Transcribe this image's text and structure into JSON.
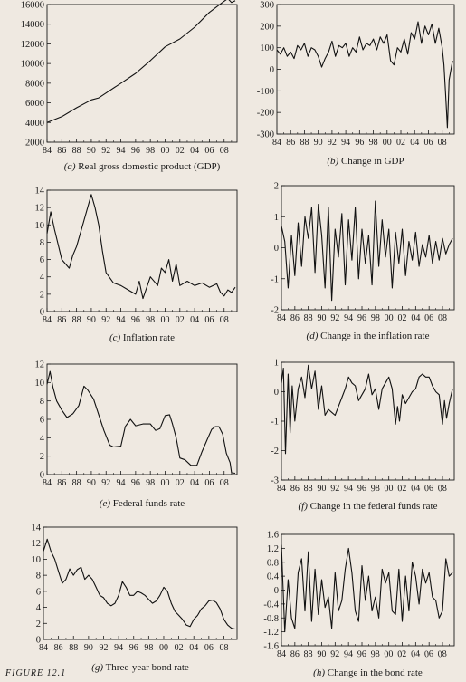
{
  "footer_text": "FIGURE 12.1",
  "chart_data": [
    {
      "id": "a",
      "type": "line",
      "panel_label": "(a)",
      "caption": "Real gross domestic product (GDP)",
      "xlim": [
        1984,
        2009.75
      ],
      "xticks": [
        "84",
        "86",
        "88",
        "90",
        "92",
        "94",
        "96",
        "98",
        "00",
        "02",
        "04",
        "06",
        "08"
      ],
      "ylim": [
        2000,
        16000
      ],
      "yticks": [
        2000,
        4000,
        6000,
        8000,
        10000,
        12000,
        14000,
        16000
      ],
      "grid": false,
      "x": [
        1984,
        1986,
        1988,
        1990,
        1991,
        1992,
        1994,
        1996,
        1998,
        2000,
        2002,
        2004,
        2006,
        2007.75,
        2008.5,
        2009,
        2009.5
      ],
      "y": [
        4000,
        4600,
        5500,
        6300,
        6500,
        7000,
        8000,
        9000,
        10300,
        11700,
        12500,
        13700,
        15200,
        16200,
        16600,
        16200,
        16400
      ]
    },
    {
      "id": "b",
      "type": "line",
      "panel_label": "(b)",
      "caption": "Change in GDP",
      "xlim": [
        1984,
        2009.75
      ],
      "xticks": [
        "84",
        "86",
        "88",
        "90",
        "92",
        "94",
        "96",
        "98",
        "00",
        "02",
        "04",
        "06",
        "08"
      ],
      "ylim": [
        -300,
        300
      ],
      "yticks": [
        -300,
        -200,
        -100,
        0,
        100,
        200,
        300
      ],
      "grid": false,
      "x": [
        1984,
        1984.5,
        1985,
        1985.5,
        1986,
        1986.5,
        1987,
        1987.5,
        1988,
        1988.5,
        1989,
        1989.5,
        1990,
        1990.5,
        1991,
        1991.5,
        1992,
        1992.5,
        1993,
        1993.5,
        1994,
        1994.5,
        1995,
        1995.5,
        1996,
        1996.5,
        1997,
        1997.5,
        1998,
        1998.5,
        1999,
        1999.5,
        2000,
        2000.5,
        2001,
        2001.5,
        2002,
        2002.5,
        2003,
        2003.5,
        2004,
        2004.5,
        2005,
        2005.5,
        2006,
        2006.5,
        2007,
        2007.5,
        2008,
        2008.25,
        2008.5,
        2008.75,
        2009,
        2009.5
      ],
      "y": [
        90,
        70,
        100,
        60,
        80,
        50,
        110,
        90,
        120,
        60,
        100,
        90,
        60,
        10,
        50,
        80,
        130,
        60,
        110,
        100,
        120,
        60,
        100,
        80,
        150,
        90,
        120,
        110,
        140,
        90,
        150,
        120,
        160,
        40,
        20,
        100,
        80,
        140,
        70,
        170,
        140,
        220,
        120,
        200,
        160,
        210,
        120,
        190,
        100,
        20,
        -120,
        -270,
        -50,
        40
      ]
    },
    {
      "id": "c",
      "type": "line",
      "panel_label": "(c)",
      "caption": "Inflation rate",
      "xlim": [
        1984,
        2009.75
      ],
      "xticks": [
        "84",
        "86",
        "88",
        "90",
        "92",
        "94",
        "96",
        "98",
        "00",
        "02",
        "04",
        "06",
        "08"
      ],
      "ylim": [
        0,
        14
      ],
      "yticks": [
        0,
        2,
        4,
        6,
        8,
        10,
        12,
        14
      ],
      "grid": false,
      "x": [
        1984,
        1984.5,
        1985,
        1986,
        1987,
        1987.5,
        1988,
        1989,
        1990,
        1990.5,
        1991,
        1991.5,
        1992,
        1993,
        1994,
        1995,
        1996,
        1996.5,
        1997,
        1998,
        1999,
        1999.5,
        2000,
        2000.5,
        2001,
        2001.5,
        2002,
        2003,
        2004,
        2005,
        2006,
        2007,
        2007.5,
        2008,
        2008.5,
        2009,
        2009.5
      ],
      "y": [
        9,
        11.5,
        9.5,
        6,
        5,
        6.5,
        7.5,
        10.5,
        13.5,
        12,
        10,
        7,
        4.5,
        3.3,
        3,
        2.5,
        2,
        3.5,
        1.5,
        4,
        3,
        5,
        4.5,
        6,
        3.5,
        5.5,
        3,
        3.5,
        3,
        3.3,
        2.8,
        3.2,
        2.2,
        1.8,
        2.5,
        2.2,
        2.8
      ]
    },
    {
      "id": "d",
      "type": "line",
      "panel_label": "(d)",
      "caption": "Change in the inflation rate",
      "xlim": [
        1984,
        2009.75
      ],
      "xticks": [
        "84",
        "86",
        "88",
        "90",
        "92",
        "94",
        "96",
        "98",
        "00",
        "02",
        "04",
        "06",
        "08"
      ],
      "ylim": [
        -2,
        2
      ],
      "yticks": [
        -2,
        -1,
        0,
        1,
        2
      ],
      "grid": false,
      "x": [
        1984,
        1984.5,
        1985,
        1985.5,
        1986,
        1986.5,
        1987,
        1987.5,
        1988,
        1988.5,
        1989,
        1989.5,
        1990,
        1990.5,
        1991,
        1991.5,
        1992,
        1992.5,
        1993,
        1993.5,
        1994,
        1994.5,
        1995,
        1995.5,
        1996,
        1996.5,
        1997,
        1997.5,
        1998,
        1998.5,
        1999,
        1999.5,
        2000,
        2000.5,
        2001,
        2001.5,
        2002,
        2002.5,
        2003,
        2003.5,
        2004,
        2004.5,
        2005,
        2005.5,
        2006,
        2006.5,
        2007,
        2007.5,
        2008,
        2008.5,
        2009,
        2009.5
      ],
      "y": [
        0.7,
        0.2,
        -1.3,
        0.4,
        -0.9,
        0.8,
        -0.6,
        1.0,
        0.3,
        1.3,
        -0.8,
        1.4,
        0.4,
        -1.3,
        1.3,
        -1.7,
        0.6,
        -0.3,
        1.1,
        -1.2,
        0.9,
        -0.4,
        1.3,
        -1.0,
        0.6,
        -0.5,
        0.4,
        -1.2,
        1.5,
        -0.6,
        0.9,
        -0.3,
        0.6,
        -1.3,
        0.5,
        -0.5,
        0.6,
        -0.9,
        0.2,
        -0.4,
        0.5,
        -0.6,
        0.1,
        -0.3,
        0.4,
        -0.5,
        0.2,
        -0.4,
        0.3,
        -0.2,
        0.1,
        0.3
      ]
    },
    {
      "id": "e",
      "type": "line",
      "panel_label": "(e)",
      "caption": "Federal funds rate",
      "xlim": [
        1984,
        2009.75
      ],
      "xticks": [
        "84",
        "86",
        "88",
        "90",
        "92",
        "94",
        "96",
        "98",
        "00",
        "02",
        "04",
        "06",
        "08"
      ],
      "ylim": [
        0,
        12
      ],
      "yticks": [
        0,
        2,
        4,
        6,
        8,
        10,
        12
      ],
      "grid": false,
      "x": [
        1984,
        1984.4,
        1984.8,
        1985.3,
        1986,
        1986.7,
        1987.5,
        1988.3,
        1989,
        1989.5,
        1990.3,
        1991,
        1991.7,
        1992.5,
        1993,
        1994,
        1994.6,
        1995.3,
        1996,
        1997,
        1998,
        1998.7,
        1999.3,
        2000,
        2000.6,
        2001,
        2001.5,
        2002,
        2002.7,
        2003.5,
        2004.3,
        2005,
        2005.7,
        2006.3,
        2006.8,
        2007.3,
        2007.8,
        2008.3,
        2008.8,
        2009,
        2009.5
      ],
      "y": [
        9.8,
        11.2,
        9.5,
        8,
        7,
        6.2,
        6.6,
        7.5,
        9.6,
        9.2,
        8.2,
        6.5,
        4.8,
        3.2,
        3,
        3.1,
        5.2,
        6,
        5.3,
        5.5,
        5.5,
        4.8,
        5,
        6.4,
        6.5,
        5.5,
        4,
        1.8,
        1.6,
        1,
        1,
        2.5,
        3.8,
        4.9,
        5.2,
        5.2,
        4.4,
        2.3,
        1.3,
        0.2,
        0.15
      ]
    },
    {
      "id": "f",
      "type": "line",
      "panel_label": "(f)",
      "caption": "Change in the federal funds rate",
      "xlim": [
        1984,
        2009.75
      ],
      "xticks": [
        "84",
        "86",
        "88",
        "90",
        "92",
        "94",
        "96",
        "98",
        "00",
        "02",
        "04",
        "06",
        "08"
      ],
      "ylim": [
        -3,
        1
      ],
      "yticks": [
        -3,
        -2,
        -1,
        0,
        1
      ],
      "grid": false,
      "x": [
        1984,
        1984.3,
        1984.6,
        1985,
        1985.3,
        1985.6,
        1986,
        1986.5,
        1987,
        1987.5,
        1988,
        1988.5,
        1989,
        1989.5,
        1990,
        1990.5,
        1991,
        1991.5,
        1992,
        1992.5,
        1993,
        1993.5,
        1994,
        1994.5,
        1995,
        1995.5,
        1996,
        1996.5,
        1997,
        1997.5,
        1998,
        1998.5,
        1999,
        1999.5,
        2000,
        2000.5,
        2001,
        2001.3,
        2001.6,
        2002,
        2002.5,
        2003,
        2003.5,
        2004,
        2004.5,
        2005,
        2005.5,
        2006,
        2006.5,
        2007,
        2007.5,
        2007.8,
        2008,
        2008.3,
        2008.6,
        2009,
        2009.5
      ],
      "y": [
        0.3,
        0.8,
        -2.1,
        0.6,
        -1.4,
        0.2,
        -1.0,
        0.1,
        0.5,
        -0.2,
        0.9,
        0.1,
        0.7,
        -0.6,
        0.2,
        -0.8,
        -0.6,
        -0.7,
        -0.8,
        -0.5,
        -0.2,
        0.1,
        0.5,
        0.3,
        0.2,
        -0.3,
        -0.1,
        0.1,
        0.6,
        -0.1,
        0.1,
        -0.6,
        0.1,
        0.3,
        0.5,
        0.1,
        -1.1,
        -0.5,
        -1.0,
        -0.1,
        -0.4,
        -0.2,
        0,
        0.1,
        0.5,
        0.6,
        0.5,
        0.5,
        0.2,
        0,
        -0.1,
        -0.7,
        -1.1,
        -0.3,
        -0.9,
        -0.4,
        0.1
      ]
    },
    {
      "id": "g",
      "type": "line",
      "panel_label": "(g)",
      "caption": "Three-year bond rate",
      "xlim": [
        1984,
        2009.75
      ],
      "xticks": [
        "84",
        "86",
        "88",
        "90",
        "92",
        "94",
        "96",
        "98",
        "00",
        "02",
        "04",
        "06",
        "08"
      ],
      "ylim": [
        0,
        14
      ],
      "yticks": [
        0,
        2,
        4,
        6,
        8,
        10,
        12,
        14
      ],
      "grid": false,
      "x": [
        1984,
        1984.5,
        1985,
        1985.5,
        1986,
        1986.5,
        1987,
        1987.5,
        1988,
        1988.5,
        1989,
        1989.5,
        1990,
        1990.5,
        1991,
        1991.5,
        1992,
        1992.5,
        1993,
        1993.5,
        1994,
        1994.5,
        1995,
        1995.5,
        1996,
        1996.5,
        1997,
        1997.5,
        1998,
        1998.5,
        1999,
        1999.5,
        2000,
        2000.5,
        2001,
        2001.5,
        2002,
        2002.5,
        2003,
        2003.5,
        2004,
        2004.5,
        2005,
        2005.5,
        2006,
        2006.5,
        2007,
        2007.5,
        2008,
        2008.5,
        2009,
        2009.5
      ],
      "y": [
        11,
        12.5,
        11,
        10,
        8.5,
        7,
        7.5,
        8.8,
        8,
        8.7,
        9,
        7.5,
        8,
        7.5,
        6.5,
        5.5,
        5.2,
        4.5,
        4.2,
        4.5,
        5.5,
        7.2,
        6.5,
        5.5,
        5.5,
        6,
        5.8,
        5.5,
        5,
        4.5,
        4.8,
        5.5,
        6.5,
        6,
        4.5,
        3.5,
        3,
        2.5,
        1.8,
        1.6,
        2.5,
        3,
        3.8,
        4.2,
        4.8,
        4.9,
        4.6,
        3.8,
        2.5,
        1.8,
        1.4,
        1.3
      ]
    },
    {
      "id": "h",
      "type": "line",
      "panel_label": "(h)",
      "caption": "Change in the bond rate",
      "xlim": [
        1984,
        2009.75
      ],
      "xticks": [
        "84",
        "86",
        "88",
        "90",
        "92",
        "94",
        "96",
        "98",
        "00",
        "02",
        "04",
        "06",
        "08"
      ],
      "ylim": [
        -1.6,
        1.6
      ],
      "yticks": [
        -1.6,
        -1.2,
        -0.8,
        -0.4,
        0.0,
        0.4,
        0.8,
        1.2,
        1.6
      ],
      "grid": false,
      "x": [
        1984,
        1984.5,
        1985,
        1985.5,
        1986,
        1986.5,
        1987,
        1987.5,
        1988,
        1988.5,
        1989,
        1989.5,
        1990,
        1990.5,
        1991,
        1991.5,
        1992,
        1992.5,
        1993,
        1993.5,
        1994,
        1994.5,
        1995,
        1995.5,
        1996,
        1996.5,
        1997,
        1997.5,
        1998,
        1998.5,
        1999,
        1999.5,
        2000,
        2000.5,
        2001,
        2001.5,
        2002,
        2002.5,
        2003,
        2003.5,
        2004,
        2004.5,
        2005,
        2005.5,
        2006,
        2006.5,
        2007,
        2007.5,
        2008,
        2008.5,
        2009,
        2009.5
      ],
      "y": [
        1.3,
        -1.2,
        0.3,
        -0.8,
        -1.1,
        0.5,
        0.9,
        -0.6,
        1.1,
        -0.9,
        0.6,
        -0.7,
        0.3,
        -0.5,
        -0.2,
        -1.1,
        0.5,
        -0.6,
        -0.3,
        0.6,
        1.2,
        0.5,
        -0.6,
        -0.9,
        0.7,
        -0.3,
        0.4,
        -0.6,
        -0.2,
        -0.8,
        0.6,
        0.2,
        0.5,
        -0.6,
        -0.7,
        0.6,
        -0.9,
        0.4,
        -0.6,
        0.8,
        0.4,
        -0.4,
        0.6,
        0.2,
        0.5,
        -0.2,
        -0.3,
        -0.8,
        -0.6,
        0.9,
        0.4,
        0.5
      ]
    }
  ]
}
